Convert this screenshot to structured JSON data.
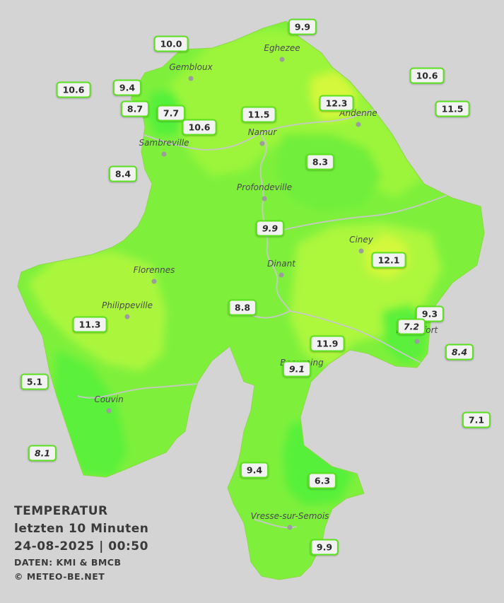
{
  "title": "TEMPERATUR",
  "subtitle": "letzten 10 Minuten",
  "datetime": "24-08-2025  |  00:50",
  "source": "DATEN: KMI & BMCB",
  "copyright": "© METEO-BE.NET",
  "colors": {
    "background": "#d4d4d4",
    "base_green": "#7ef03c",
    "warm_yellow_green": "#b4f53c",
    "cool_green": "#52f03a",
    "badge_border": "#5ce11e",
    "river": "#c8c8c8"
  },
  "cities": [
    {
      "name": "Eghezee"
    },
    {
      "name": "Gembloux"
    },
    {
      "name": "Sambreville"
    },
    {
      "name": "Namur"
    },
    {
      "name": "Andenne"
    },
    {
      "name": "Profondeville"
    },
    {
      "name": "Ciney"
    },
    {
      "name": "Dinant"
    },
    {
      "name": "Florennes"
    },
    {
      "name": "Philippeville"
    },
    {
      "name": "Rochefort"
    },
    {
      "name": "Beauraing"
    },
    {
      "name": "Couvin"
    },
    {
      "name": "Vresse-sur-Semois"
    }
  ],
  "stations": [
    {
      "value": "9.9",
      "italic": false
    },
    {
      "value": "10.0",
      "italic": false
    },
    {
      "value": "10.6",
      "italic": false
    },
    {
      "value": "10.6",
      "italic": false
    },
    {
      "value": "9.4",
      "italic": false
    },
    {
      "value": "8.7",
      "italic": false
    },
    {
      "value": "7.7",
      "italic": false
    },
    {
      "value": "10.6",
      "italic": false
    },
    {
      "value": "11.5",
      "italic": false
    },
    {
      "value": "12.3",
      "italic": false
    },
    {
      "value": "11.5",
      "italic": false
    },
    {
      "value": "8.4",
      "italic": false
    },
    {
      "value": "8.3",
      "italic": false
    },
    {
      "value": "9.9",
      "italic": true
    },
    {
      "value": "12.1",
      "italic": false
    },
    {
      "value": "8.8",
      "italic": false
    },
    {
      "value": "9.3",
      "italic": false
    },
    {
      "value": "7.2",
      "italic": true
    },
    {
      "value": "11.3",
      "italic": false
    },
    {
      "value": "11.9",
      "italic": false
    },
    {
      "value": "8.4",
      "italic": true
    },
    {
      "value": "9.1",
      "italic": true
    },
    {
      "value": "5.1",
      "italic": false
    },
    {
      "value": "7.1",
      "italic": false
    },
    {
      "value": "8.1",
      "italic": true
    },
    {
      "value": "9.4",
      "italic": false
    },
    {
      "value": "6.3",
      "italic": false
    },
    {
      "value": "9.9",
      "italic": false
    }
  ]
}
